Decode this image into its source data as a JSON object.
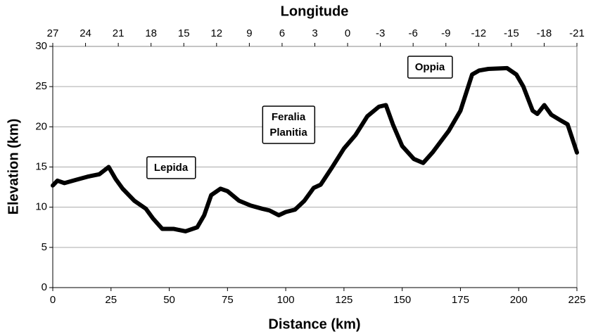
{
  "chart_data": {
    "type": "line",
    "xlabel": "Distance (km)",
    "ylabel": "Elevation (km)",
    "x2label": "Longitude",
    "x": [
      0,
      2,
      5,
      10,
      15,
      20,
      24,
      27,
      30,
      35,
      40,
      43,
      47,
      52,
      57,
      62,
      65,
      68,
      72,
      75,
      80,
      85,
      90,
      93,
      97,
      100,
      104,
      108,
      112,
      115,
      120,
      125,
      130,
      135,
      140,
      143,
      146,
      150,
      155,
      159,
      163,
      170,
      175,
      180,
      183,
      187,
      195,
      199,
      202,
      206,
      208,
      211,
      214,
      218,
      221,
      225
    ],
    "series": [
      {
        "color": "#000000",
        "values": [
          12.7,
          13.3,
          13.0,
          13.4,
          13.8,
          14.1,
          15.0,
          13.5,
          12.3,
          10.8,
          9.8,
          8.6,
          7.3,
          7.3,
          7.0,
          7.5,
          9.0,
          11.5,
          12.3,
          12.0,
          10.8,
          10.2,
          9.8,
          9.6,
          9.0,
          9.4,
          9.7,
          10.8,
          12.4,
          12.8,
          15.0,
          17.3,
          19.0,
          21.3,
          22.5,
          22.7,
          20.3,
          17.6,
          16.0,
          15.5,
          16.8,
          19.5,
          22.0,
          26.5,
          27.0,
          27.2,
          27.3,
          26.5,
          25.0,
          22.0,
          21.6,
          22.7,
          21.5,
          20.8,
          20.3,
          16.8
        ]
      }
    ],
    "xlim": [
      0,
      225
    ],
    "xticks": [
      0,
      25,
      50,
      75,
      100,
      125,
      150,
      175,
      200,
      225
    ],
    "ylim": [
      0,
      30
    ],
    "yticks": [
      0,
      5,
      10,
      15,
      20,
      25,
      30
    ],
    "x2lim": [
      27,
      -21
    ],
    "x2ticks": [
      27,
      24,
      21,
      18,
      15,
      12,
      9,
      6,
      3,
      0,
      -3,
      -6,
      -9,
      -12,
      -15,
      -18,
      -21
    ],
    "grid": true,
    "annotations": [
      [
        "Lepida"
      ],
      [
        "Feralia",
        "Planitia"
      ],
      [
        "Oppia"
      ]
    ]
  }
}
